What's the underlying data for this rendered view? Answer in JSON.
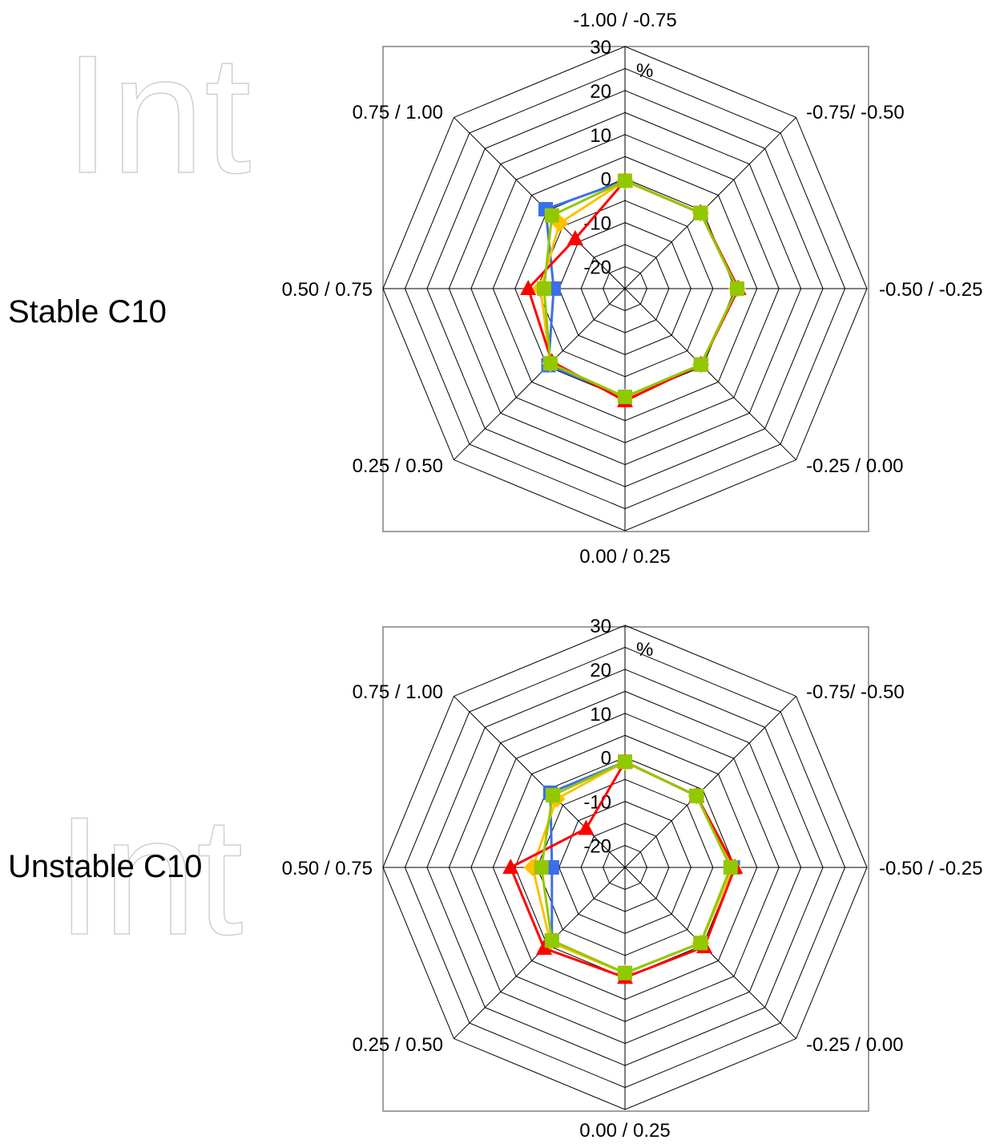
{
  "chart_data": [
    {
      "type": "radar",
      "title": "Stable C10",
      "unit_label": "%",
      "categories": [
        "-1.00 / -0.75",
        "-0.75/ -0.50",
        "-0.50 / -0.25",
        "-0.25 / 0.00",
        "0.00 / 0.25",
        "0.25 / 0.50",
        "0.50 / 0.75",
        "0.75 / 1.00"
      ],
      "r_ticks": [
        -20,
        -10,
        0,
        10,
        20,
        30
      ],
      "rlim": [
        -25,
        30
      ],
      "grid": true,
      "series": [
        {
          "color": "#3c6ee8",
          "marker": "square",
          "values": [
            -0.5,
            -0.7,
            0.5,
            -0.6,
            -0.4,
            -0.4,
            -8.8,
            0.5
          ]
        },
        {
          "color": "#ffc000",
          "marker": "diamond",
          "values": [
            -0.5,
            -0.7,
            0.5,
            -0.6,
            -0.2,
            -1.0,
            -5.8,
            -4.0
          ]
        },
        {
          "color": "#ff0000",
          "marker": "triangle",
          "values": [
            -0.5,
            -0.7,
            0.8,
            -0.6,
            0.5,
            -1.5,
            -3.0,
            -9.0
          ]
        },
        {
          "color": "#92c800",
          "marker": "square",
          "values": [
            -0.5,
            -0.7,
            0.5,
            -0.6,
            -0.4,
            -1.0,
            -6.6,
            -1.5
          ]
        }
      ]
    },
    {
      "type": "radar",
      "title": "Unstable C10",
      "unit_label": "%",
      "categories": [
        "-1.00 / -0.75",
        "-0.75/ -0.50",
        "-0.50 / -0.25",
        "-0.25 / 0.00",
        "0.00 / 0.25",
        "0.25 / 0.50",
        "0.50 / 0.75",
        "0.75 / 1.00"
      ],
      "r_ticks": [
        -20,
        -10,
        0,
        10,
        20,
        30
      ],
      "rlim": [
        -25,
        30
      ],
      "grid": true,
      "series": [
        {
          "color": "#3c6ee8",
          "marker": "square",
          "values": [
            -1.0,
            -2.0,
            -0.5,
            -0.7,
            -1.0,
            -1.5,
            -8.4,
            -1.0
          ]
        },
        {
          "color": "#ffc000",
          "marker": "diamond",
          "values": [
            -1.0,
            -2.0,
            -0.5,
            -0.7,
            -1.0,
            -1.0,
            -4.0,
            -3.0
          ]
        },
        {
          "color": "#ff0000",
          "marker": "triangle",
          "values": [
            -1.0,
            -2.0,
            0.0,
            0.5,
            0.0,
            1.0,
            1.0,
            -12.5
          ]
        },
        {
          "color": "#92c800",
          "marker": "square",
          "values": [
            -1.0,
            -2.0,
            -1.0,
            -0.7,
            -1.0,
            -1.5,
            -6.0,
            -1.8
          ]
        }
      ]
    }
  ]
}
